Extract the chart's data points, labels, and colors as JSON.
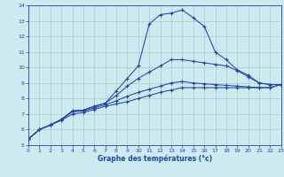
{
  "xlabel": "Graphe des températures (°c)",
  "bg_color": "#cdeaf0",
  "line_color": "#2244aa",
  "grid_color": "#aacccc",
  "xlim": [
    0,
    23
  ],
  "ylim": [
    5,
    14
  ],
  "xticks": [
    0,
    1,
    2,
    3,
    4,
    5,
    6,
    7,
    8,
    9,
    10,
    11,
    12,
    13,
    14,
    15,
    16,
    17,
    18,
    19,
    20,
    21,
    22,
    23
  ],
  "yticks": [
    5,
    6,
    7,
    8,
    9,
    10,
    11,
    12,
    13,
    14
  ],
  "line1_x": [
    0,
    1,
    2,
    3,
    4,
    5,
    6,
    7,
    8,
    9,
    10,
    11,
    12,
    13,
    14,
    15,
    16,
    17,
    18,
    19,
    20,
    21,
    22,
    23
  ],
  "line1_y": [
    5.4,
    6.0,
    6.3,
    6.65,
    7.2,
    7.25,
    7.5,
    7.7,
    8.5,
    9.3,
    10.1,
    12.8,
    13.4,
    13.5,
    13.7,
    13.2,
    12.65,
    11.0,
    10.5,
    9.85,
    9.5,
    9.0,
    8.9,
    8.9
  ],
  "line2_x": [
    0,
    1,
    2,
    3,
    4,
    5,
    6,
    7,
    8,
    9,
    10,
    11,
    12,
    13,
    14,
    15,
    16,
    17,
    18,
    19,
    20,
    21,
    22,
    23
  ],
  "line2_y": [
    5.4,
    6.0,
    6.3,
    6.65,
    7.2,
    7.25,
    7.5,
    7.7,
    8.2,
    8.8,
    9.3,
    9.7,
    10.1,
    10.5,
    10.5,
    10.4,
    10.3,
    10.2,
    10.1,
    9.8,
    9.4,
    9.0,
    8.9,
    8.9
  ],
  "line3_x": [
    0,
    1,
    2,
    3,
    4,
    5,
    6,
    7,
    8,
    9,
    10,
    11,
    12,
    13,
    14,
    15,
    16,
    17,
    18,
    19,
    20,
    21,
    22,
    23
  ],
  "line3_y": [
    5.4,
    6.0,
    6.3,
    6.65,
    7.15,
    7.2,
    7.4,
    7.6,
    7.85,
    8.15,
    8.4,
    8.6,
    8.8,
    9.0,
    9.1,
    9.0,
    8.95,
    8.9,
    8.85,
    8.8,
    8.75,
    8.7,
    8.7,
    8.9
  ],
  "line4_x": [
    0,
    1,
    2,
    3,
    4,
    5,
    6,
    7,
    8,
    9,
    10,
    11,
    12,
    13,
    14,
    15,
    16,
    17,
    18,
    19,
    20,
    21,
    22,
    23
  ],
  "line4_y": [
    5.4,
    6.0,
    6.3,
    6.6,
    7.0,
    7.1,
    7.3,
    7.5,
    7.65,
    7.8,
    8.0,
    8.2,
    8.4,
    8.55,
    8.7,
    8.7,
    8.7,
    8.7,
    8.7,
    8.7,
    8.7,
    8.7,
    8.7,
    8.9
  ]
}
